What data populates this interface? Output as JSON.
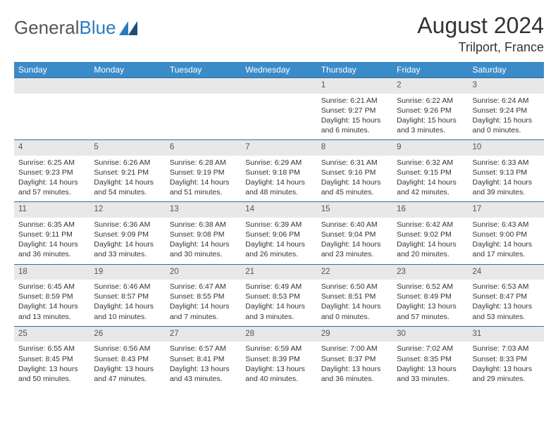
{
  "logo": {
    "part1": "General",
    "part2": "Blue"
  },
  "title": "August 2024",
  "location": "Trilport, France",
  "header_bg": "#3b8bc8",
  "header_text": "#ffffff",
  "daynum_bg": "#e8e8e8",
  "border_color": "#2f6fa3",
  "weekdays": [
    "Sunday",
    "Monday",
    "Tuesday",
    "Wednesday",
    "Thursday",
    "Friday",
    "Saturday"
  ],
  "weeks": [
    [
      null,
      null,
      null,
      null,
      {
        "num": "1",
        "sunrise": "6:21 AM",
        "sunset": "9:27 PM",
        "daylight": "15 hours and 6 minutes."
      },
      {
        "num": "2",
        "sunrise": "6:22 AM",
        "sunset": "9:26 PM",
        "daylight": "15 hours and 3 minutes."
      },
      {
        "num": "3",
        "sunrise": "6:24 AM",
        "sunset": "9:24 PM",
        "daylight": "15 hours and 0 minutes."
      }
    ],
    [
      {
        "num": "4",
        "sunrise": "6:25 AM",
        "sunset": "9:23 PM",
        "daylight": "14 hours and 57 minutes."
      },
      {
        "num": "5",
        "sunrise": "6:26 AM",
        "sunset": "9:21 PM",
        "daylight": "14 hours and 54 minutes."
      },
      {
        "num": "6",
        "sunrise": "6:28 AM",
        "sunset": "9:19 PM",
        "daylight": "14 hours and 51 minutes."
      },
      {
        "num": "7",
        "sunrise": "6:29 AM",
        "sunset": "9:18 PM",
        "daylight": "14 hours and 48 minutes."
      },
      {
        "num": "8",
        "sunrise": "6:31 AM",
        "sunset": "9:16 PM",
        "daylight": "14 hours and 45 minutes."
      },
      {
        "num": "9",
        "sunrise": "6:32 AM",
        "sunset": "9:15 PM",
        "daylight": "14 hours and 42 minutes."
      },
      {
        "num": "10",
        "sunrise": "6:33 AM",
        "sunset": "9:13 PM",
        "daylight": "14 hours and 39 minutes."
      }
    ],
    [
      {
        "num": "11",
        "sunrise": "6:35 AM",
        "sunset": "9:11 PM",
        "daylight": "14 hours and 36 minutes."
      },
      {
        "num": "12",
        "sunrise": "6:36 AM",
        "sunset": "9:09 PM",
        "daylight": "14 hours and 33 minutes."
      },
      {
        "num": "13",
        "sunrise": "6:38 AM",
        "sunset": "9:08 PM",
        "daylight": "14 hours and 30 minutes."
      },
      {
        "num": "14",
        "sunrise": "6:39 AM",
        "sunset": "9:06 PM",
        "daylight": "14 hours and 26 minutes."
      },
      {
        "num": "15",
        "sunrise": "6:40 AM",
        "sunset": "9:04 PM",
        "daylight": "14 hours and 23 minutes."
      },
      {
        "num": "16",
        "sunrise": "6:42 AM",
        "sunset": "9:02 PM",
        "daylight": "14 hours and 20 minutes."
      },
      {
        "num": "17",
        "sunrise": "6:43 AM",
        "sunset": "9:00 PM",
        "daylight": "14 hours and 17 minutes."
      }
    ],
    [
      {
        "num": "18",
        "sunrise": "6:45 AM",
        "sunset": "8:59 PM",
        "daylight": "14 hours and 13 minutes."
      },
      {
        "num": "19",
        "sunrise": "6:46 AM",
        "sunset": "8:57 PM",
        "daylight": "14 hours and 10 minutes."
      },
      {
        "num": "20",
        "sunrise": "6:47 AM",
        "sunset": "8:55 PM",
        "daylight": "14 hours and 7 minutes."
      },
      {
        "num": "21",
        "sunrise": "6:49 AM",
        "sunset": "8:53 PM",
        "daylight": "14 hours and 3 minutes."
      },
      {
        "num": "22",
        "sunrise": "6:50 AM",
        "sunset": "8:51 PM",
        "daylight": "14 hours and 0 minutes."
      },
      {
        "num": "23",
        "sunrise": "6:52 AM",
        "sunset": "8:49 PM",
        "daylight": "13 hours and 57 minutes."
      },
      {
        "num": "24",
        "sunrise": "6:53 AM",
        "sunset": "8:47 PM",
        "daylight": "13 hours and 53 minutes."
      }
    ],
    [
      {
        "num": "25",
        "sunrise": "6:55 AM",
        "sunset": "8:45 PM",
        "daylight": "13 hours and 50 minutes."
      },
      {
        "num": "26",
        "sunrise": "6:56 AM",
        "sunset": "8:43 PM",
        "daylight": "13 hours and 47 minutes."
      },
      {
        "num": "27",
        "sunrise": "6:57 AM",
        "sunset": "8:41 PM",
        "daylight": "13 hours and 43 minutes."
      },
      {
        "num": "28",
        "sunrise": "6:59 AM",
        "sunset": "8:39 PM",
        "daylight": "13 hours and 40 minutes."
      },
      {
        "num": "29",
        "sunrise": "7:00 AM",
        "sunset": "8:37 PM",
        "daylight": "13 hours and 36 minutes."
      },
      {
        "num": "30",
        "sunrise": "7:02 AM",
        "sunset": "8:35 PM",
        "daylight": "13 hours and 33 minutes."
      },
      {
        "num": "31",
        "sunrise": "7:03 AM",
        "sunset": "8:33 PM",
        "daylight": "13 hours and 29 minutes."
      }
    ]
  ]
}
